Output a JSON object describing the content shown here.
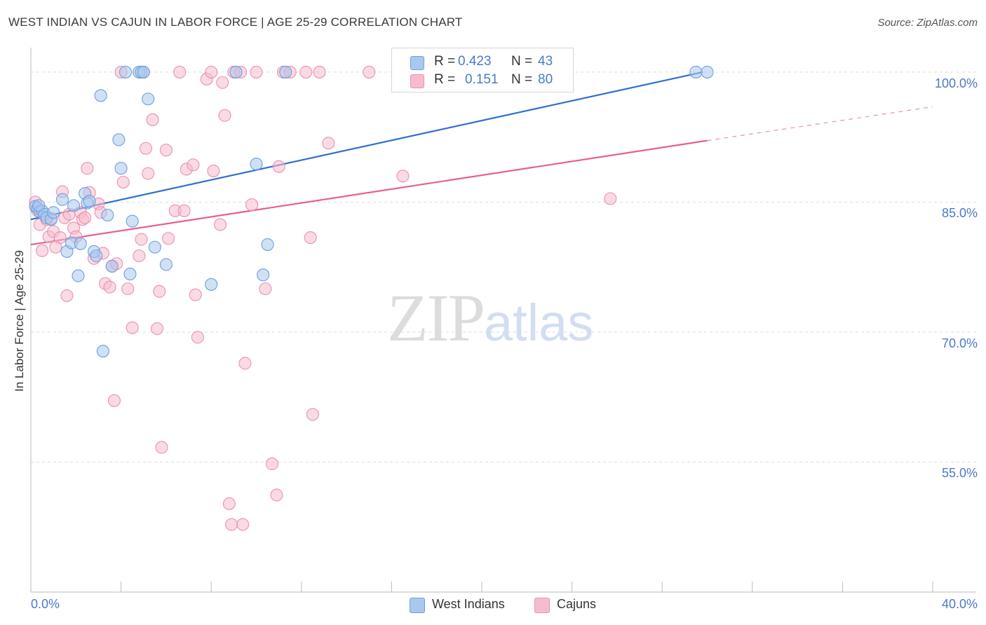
{
  "title": "WEST INDIAN VS CAJUN IN LABOR FORCE | AGE 25-29 CORRELATION CHART",
  "source": "Source: ZipAtlas.com",
  "watermark": {
    "zip": "ZIP",
    "atlas": "atlas"
  },
  "colors": {
    "west_indians_fill": "#aac8ef",
    "west_indians_stroke": "#6f9fdc",
    "west_indians_line": "#2f6fd0",
    "cajuns_fill": "#f6bccd",
    "cajuns_stroke": "#ec91ad",
    "cajuns_line": "#e5608c",
    "axis_label": "#4a7ac9",
    "grid": "#dddddd"
  },
  "legend": {
    "r_label": "R =",
    "n_label": "N =",
    "west_r": "0.423",
    "west_n": "43",
    "cajun_r": "0.151",
    "cajun_n": "80"
  },
  "chart_data": {
    "type": "scatter",
    "ylabel": "In Labor Force | Age 25-29",
    "xlim": [
      0,
      40
    ],
    "ylim": [
      40,
      102.5
    ],
    "x_tick_labels": [
      "0.0%",
      "40.0%"
    ],
    "y_ticks": [
      55,
      70,
      85,
      100
    ],
    "y_tick_labels": [
      "55.0%",
      "70.0%",
      "85.0%",
      "100.0%"
    ],
    "grid": true,
    "series": [
      {
        "name": "West Indians",
        "points": [
          [
            0.2,
            84.5
          ],
          [
            0.3,
            84.3
          ],
          [
            0.4,
            83.9
          ],
          [
            0.5,
            84.0
          ],
          [
            0.6,
            83.6
          ],
          [
            0.7,
            83.2
          ],
          [
            0.9,
            83.0
          ],
          [
            1.0,
            83.8
          ],
          [
            1.4,
            85.3
          ],
          [
            1.6,
            79.3
          ],
          [
            1.8,
            80.3
          ],
          [
            1.9,
            84.6
          ],
          [
            2.1,
            76.5
          ],
          [
            2.2,
            80.2
          ],
          [
            2.4,
            86.0
          ],
          [
            2.5,
            84.9
          ],
          [
            2.6,
            85.1
          ],
          [
            2.8,
            79.3
          ],
          [
            2.9,
            78.8
          ],
          [
            3.1,
            97.3
          ],
          [
            3.2,
            67.8
          ],
          [
            3.4,
            83.5
          ],
          [
            3.6,
            77.6
          ],
          [
            3.9,
            92.2
          ],
          [
            4.0,
            88.9
          ],
          [
            4.2,
            100.0
          ],
          [
            4.4,
            76.7
          ],
          [
            4.5,
            82.8
          ],
          [
            4.8,
            100.0
          ],
          [
            4.9,
            100.0
          ],
          [
            5.0,
            100.0
          ],
          [
            5.2,
            96.9
          ],
          [
            5.5,
            79.8
          ],
          [
            6.0,
            77.8
          ],
          [
            8.0,
            75.5
          ],
          [
            9.1,
            100.0
          ],
          [
            10.0,
            89.4
          ],
          [
            10.3,
            76.6
          ],
          [
            10.5,
            80.1
          ],
          [
            11.3,
            100.0
          ],
          [
            29.5,
            100.0
          ],
          [
            30.0,
            100.0
          ],
          [
            0.35,
            84.6
          ]
        ]
      },
      {
        "name": "Cajuns",
        "points": [
          [
            0.2,
            85.0
          ],
          [
            0.3,
            84.0
          ],
          [
            0.4,
            82.4
          ],
          [
            0.5,
            79.4
          ],
          [
            0.7,
            83.0
          ],
          [
            0.8,
            81.0
          ],
          [
            0.9,
            83.1
          ],
          [
            1.0,
            81.6
          ],
          [
            1.1,
            79.8
          ],
          [
            1.3,
            80.9
          ],
          [
            1.4,
            86.2
          ],
          [
            1.5,
            83.2
          ],
          [
            1.6,
            74.2
          ],
          [
            1.7,
            83.6
          ],
          [
            1.9,
            82.0
          ],
          [
            2.0,
            81.0
          ],
          [
            2.2,
            83.8
          ],
          [
            2.3,
            83.0
          ],
          [
            2.4,
            83.2
          ],
          [
            2.5,
            88.9
          ],
          [
            2.6,
            86.1
          ],
          [
            2.8,
            78.5
          ],
          [
            3.0,
            84.8
          ],
          [
            3.1,
            83.8
          ],
          [
            3.2,
            79.1
          ],
          [
            3.3,
            75.6
          ],
          [
            3.5,
            75.2
          ],
          [
            3.6,
            77.6
          ],
          [
            3.7,
            62.1
          ],
          [
            3.8,
            77.9
          ],
          [
            4.0,
            100.0
          ],
          [
            4.1,
            87.3
          ],
          [
            4.3,
            75.0
          ],
          [
            4.5,
            70.5
          ],
          [
            4.8,
            78.8
          ],
          [
            4.9,
            80.7
          ],
          [
            5.0,
            100.0
          ],
          [
            5.1,
            91.2
          ],
          [
            5.2,
            88.3
          ],
          [
            5.4,
            94.5
          ],
          [
            5.6,
            70.4
          ],
          [
            5.7,
            74.7
          ],
          [
            5.8,
            56.7
          ],
          [
            6.0,
            91.0
          ],
          [
            6.1,
            80.8
          ],
          [
            6.4,
            84.0
          ],
          [
            6.6,
            100.0
          ],
          [
            6.8,
            84.0
          ],
          [
            6.9,
            88.8
          ],
          [
            7.2,
            89.3
          ],
          [
            7.3,
            74.3
          ],
          [
            7.4,
            69.4
          ],
          [
            7.8,
            99.2
          ],
          [
            8.0,
            100.0
          ],
          [
            8.1,
            88.6
          ],
          [
            8.4,
            82.4
          ],
          [
            8.5,
            98.8
          ],
          [
            8.6,
            95.0
          ],
          [
            8.8,
            50.2
          ],
          [
            8.9,
            47.8
          ],
          [
            9.0,
            100.0
          ],
          [
            9.3,
            100.0
          ],
          [
            9.4,
            47.8
          ],
          [
            9.5,
            66.4
          ],
          [
            9.8,
            84.7
          ],
          [
            10.0,
            100.0
          ],
          [
            10.4,
            75.0
          ],
          [
            10.7,
            54.8
          ],
          [
            10.9,
            51.2
          ],
          [
            11.0,
            89.1
          ],
          [
            11.2,
            100.0
          ],
          [
            11.5,
            100.0
          ],
          [
            12.2,
            100.0
          ],
          [
            12.4,
            80.9
          ],
          [
            12.5,
            60.5
          ],
          [
            12.8,
            100.0
          ],
          [
            13.2,
            91.8
          ],
          [
            15.0,
            100.0
          ],
          [
            16.5,
            88.0
          ],
          [
            25.7,
            85.4
          ]
        ]
      }
    ],
    "trend_lines": [
      {
        "series": "West Indians",
        "x": [
          0,
          29.8
        ],
        "y": [
          83.0,
          100.0
        ],
        "dashed_to": null
      },
      {
        "series": "Cajuns",
        "x": [
          0,
          30.0
        ],
        "y": [
          80.1,
          92.1
        ],
        "dashed_to": [
          40.0,
          96.0
        ]
      }
    ]
  }
}
